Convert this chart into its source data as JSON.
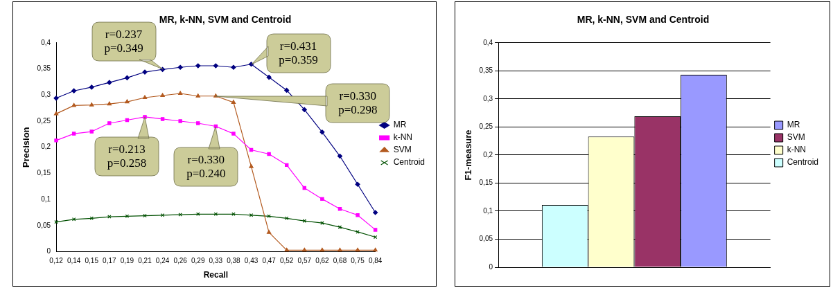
{
  "chart_data": [
    {
      "type": "line",
      "title": "MR, k-NN, SVM and Centroid",
      "xlabel": "Recall",
      "ylabel": "Precision",
      "categories": [
        "0,12",
        "0,14",
        "0,15",
        "0,17",
        "0,19",
        "0,21",
        "0,24",
        "0,26",
        "0,29",
        "0,33",
        "0,38",
        "0,43",
        "0,47",
        "0,52",
        "0,57",
        "0,62",
        "0,68",
        "0,75",
        "0,84"
      ],
      "series": [
        {
          "name": "MR",
          "color": "#000080",
          "marker": "diamond",
          "values": [
            0.294,
            0.308,
            0.315,
            0.324,
            0.333,
            0.344,
            0.349,
            0.353,
            0.356,
            0.356,
            0.353,
            0.359,
            0.334,
            0.309,
            0.272,
            0.229,
            0.183,
            0.129,
            0.075
          ]
        },
        {
          "name": "k-NN",
          "color": "#ff00ff",
          "marker": "square",
          "values": [
            0.213,
            0.226,
            0.23,
            0.246,
            0.252,
            0.258,
            0.254,
            0.25,
            0.246,
            0.24,
            0.226,
            0.195,
            0.187,
            0.166,
            0.122,
            0.101,
            0.082,
            0.07,
            0.042
          ]
        },
        {
          "name": "SVM",
          "color": "#b35a1f",
          "marker": "triangle",
          "values": [
            0.264,
            0.28,
            0.281,
            0.283,
            0.287,
            0.295,
            0.299,
            0.303,
            0.298,
            0.298,
            0.286,
            0.163,
            0.037,
            0.003,
            0.003,
            0.003,
            0.003,
            0.003,
            0.003
          ]
        },
        {
          "name": "Centroid",
          "color": "#005000",
          "marker": "cross",
          "values": [
            0.057,
            0.062,
            0.064,
            0.067,
            0.068,
            0.069,
            0.07,
            0.071,
            0.072,
            0.072,
            0.072,
            0.07,
            0.068,
            0.064,
            0.059,
            0.055,
            0.047,
            0.038,
            0.028
          ]
        }
      ],
      "ylim": [
        0,
        0.4
      ],
      "yticks": [
        {
          "value": 0,
          "label": "0"
        },
        {
          "value": 0.05,
          "label": "0,05"
        },
        {
          "value": 0.1,
          "label": "0,1"
        },
        {
          "value": 0.15,
          "label": "0,15"
        },
        {
          "value": 0.2,
          "label": "0,2"
        },
        {
          "value": 0.25,
          "label": "0,25"
        },
        {
          "value": 0.3,
          "label": "0,3"
        },
        {
          "value": 0.35,
          "label": "0,35"
        },
        {
          "value": 0.4,
          "label": "0,4"
        }
      ],
      "grid": false,
      "legend": "right",
      "line_style": "solid",
      "annotations": [
        {
          "text": "r=0.237\np=0.349",
          "x": "0,24",
          "y": 0.349
        },
        {
          "text": "r=0.431\np=0.359",
          "x": "0,43",
          "y": 0.359
        },
        {
          "text": "r=0.330\np=0.298",
          "x": "0,33",
          "y": 0.298
        },
        {
          "text": "r=0.213\np=0.258",
          "x": "0,21",
          "y": 0.258
        },
        {
          "text": "r=0.330\np=0.240",
          "x": "0,33",
          "y": 0.24
        }
      ]
    },
    {
      "type": "bar",
      "title": "MR, k-NN, SVM and Centroid",
      "ylabel": "F1-measure",
      "categories": [
        null
      ],
      "series": [
        {
          "name": "Centroid",
          "color": "#ccffff",
          "values": [
            0.111
          ]
        },
        {
          "name": "k-NN",
          "color": "#ffffcc",
          "values": [
            0.233
          ]
        },
        {
          "name": "SVM",
          "color": "#993366",
          "values": [
            0.269
          ]
        },
        {
          "name": "MR",
          "color": "#9999ff",
          "values": [
            0.343
          ]
        }
      ],
      "ylim": [
        0,
        0.4
      ],
      "yticks": [
        {
          "value": 0,
          "label": "0"
        },
        {
          "value": 0.05,
          "label": "0,05"
        },
        {
          "value": 0.1,
          "label": "0,1"
        },
        {
          "value": 0.15,
          "label": "0,15"
        },
        {
          "value": 0.2,
          "label": "0,2"
        },
        {
          "value": 0.25,
          "label": "0,25"
        },
        {
          "value": 0.3,
          "label": "0,3"
        },
        {
          "value": 0.35,
          "label": "0,35"
        },
        {
          "value": 0.4,
          "label": "0,4"
        }
      ],
      "grid": "y",
      "legend": "right"
    }
  ]
}
